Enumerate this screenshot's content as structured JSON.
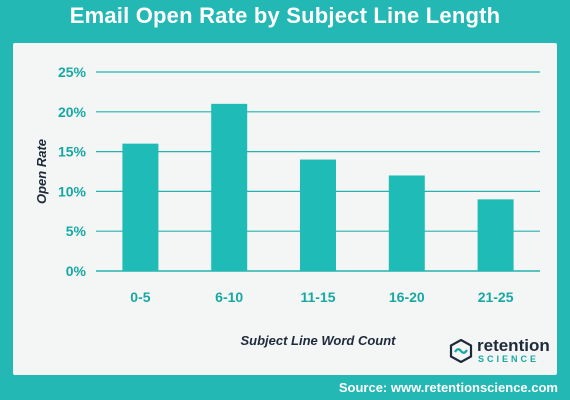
{
  "header": {
    "title": "Email Open Rate by Subject Line Length"
  },
  "footer": {
    "source": "Source: www.retentionscience.com"
  },
  "logo": {
    "word": "retention",
    "sub": "SCIENCE"
  },
  "colors": {
    "background": "#23b8b3",
    "bar": "#1fbcb7",
    "grid": "#27b2ae",
    "tick": "#17a8a4",
    "label": "#1e2a3a"
  },
  "chart_data": {
    "type": "bar",
    "categories": [
      "0-5",
      "6-10",
      "11-15",
      "16-20",
      "21-25"
    ],
    "values": [
      16,
      21,
      14,
      12,
      9
    ],
    "xlabel": "Subject Line Word Count",
    "ylabel": "Open Rate",
    "ylim": [
      0,
      25
    ],
    "yticks": [
      "0%",
      "5%",
      "10%",
      "15%",
      "20%",
      "25%"
    ],
    "grid": true
  }
}
